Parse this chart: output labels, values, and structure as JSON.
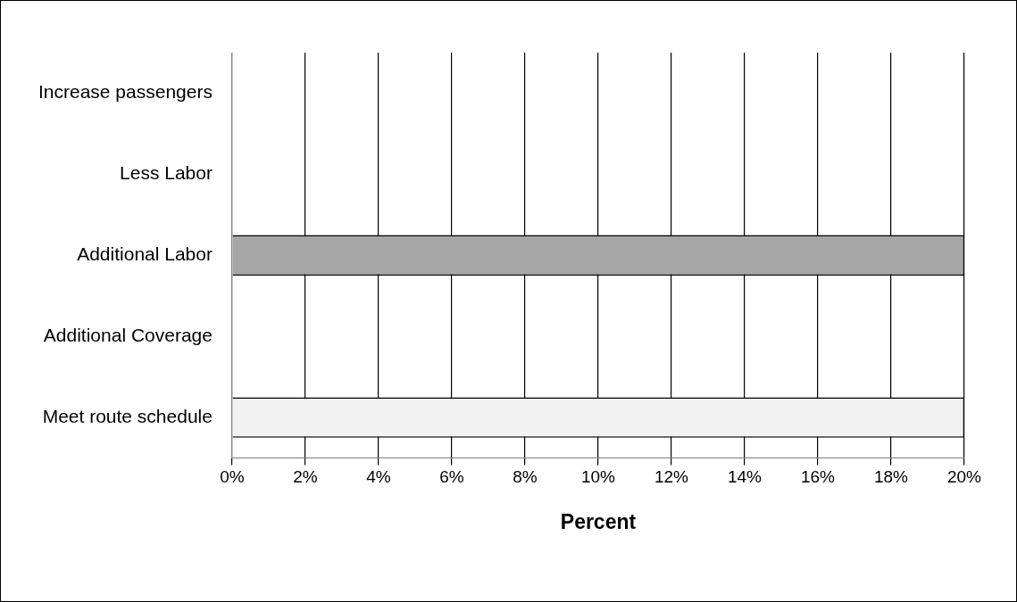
{
  "chart_data": {
    "type": "bar",
    "orientation": "horizontal",
    "categories": [
      "Increase passengers",
      "Less Labor",
      "Additional Labor",
      "Additional Coverage",
      "Meet route schedule"
    ],
    "values": [
      0,
      0,
      20,
      0,
      20
    ],
    "colors": [
      "#808080",
      "#808080",
      "#a6a6a6",
      "#808080",
      "#f2f2f2"
    ],
    "xlabel": "Percent",
    "xlim": [
      0,
      20
    ],
    "xticks": [
      {
        "value": 0,
        "label": "0%"
      },
      {
        "value": 2,
        "label": "2%"
      },
      {
        "value": 4,
        "label": "4%"
      },
      {
        "value": 6,
        "label": "6%"
      },
      {
        "value": 8,
        "label": "8%"
      },
      {
        "value": 10,
        "label": "10%"
      },
      {
        "value": 12,
        "label": "12%"
      },
      {
        "value": 14,
        "label": "14%"
      },
      {
        "value": 16,
        "label": "16%"
      },
      {
        "value": 18,
        "label": "18%"
      },
      {
        "value": 20,
        "label": "20%"
      }
    ],
    "grid": "x",
    "legend": false
  }
}
